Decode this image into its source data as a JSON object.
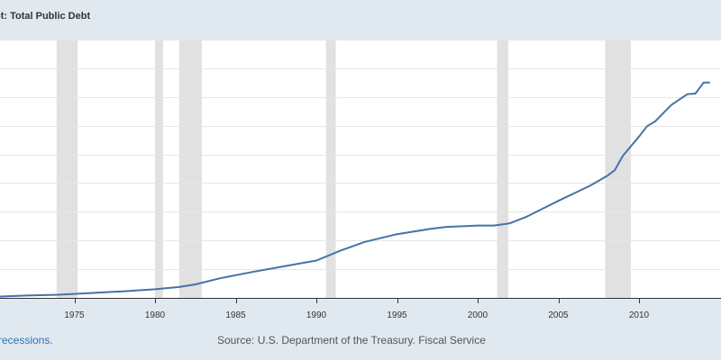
{
  "chart_title": "pt: Total Public Debt",
  "footer": {
    "recession_note": "recessions.",
    "source": "Source: U.S. Department of the Treasury. Fiscal Service"
  },
  "colors": {
    "page_background": "#e1e9f0",
    "plot_background": "#ffffff",
    "series_line": "#4572a7",
    "recession_band": "#e1e1e1",
    "gridline": "#e6e6e6",
    "axis": "#333333"
  },
  "chart_data": {
    "type": "line",
    "title": "pt: Total Public Debt",
    "xlabel": "",
    "ylabel": "",
    "grid": true,
    "x_ticks": [
      1975,
      1980,
      1985,
      1990,
      1995,
      2000,
      2005,
      2010
    ],
    "xlim": [
      1970.2,
      2014.4
    ],
    "ylim": [
      0,
      9
    ],
    "recessions": [
      [
        1973.9,
        1975.2
      ],
      [
        1980.0,
        1980.5
      ],
      [
        1981.5,
        1982.9
      ],
      [
        1990.6,
        1991.2
      ],
      [
        2001.2,
        2001.9
      ],
      [
        2007.9,
        2009.5
      ]
    ],
    "series": [
      {
        "x": [
          1970.2,
          1972,
          1974,
          1976,
          1978,
          1980,
          1981.5,
          1982.5,
          1984,
          1986,
          1988,
          1990,
          1991.5,
          1993,
          1995,
          1997,
          1998,
          2000,
          2001,
          2002,
          2003,
          2004,
          2005,
          2006,
          2007,
          2008,
          2008.5,
          2009,
          2010,
          2010.5,
          2011,
          2012,
          2013,
          2013.5,
          2014,
          2014.4
        ],
        "y": [
          0.04,
          0.08,
          0.11,
          0.17,
          0.23,
          0.3,
          0.38,
          0.47,
          0.68,
          0.9,
          1.1,
          1.3,
          1.65,
          1.95,
          2.22,
          2.4,
          2.47,
          2.52,
          2.52,
          2.6,
          2.82,
          3.1,
          3.38,
          3.65,
          3.92,
          4.24,
          4.45,
          4.95,
          5.62,
          5.98,
          6.15,
          6.72,
          7.1,
          7.12,
          7.5,
          7.5
        ]
      }
    ]
  }
}
